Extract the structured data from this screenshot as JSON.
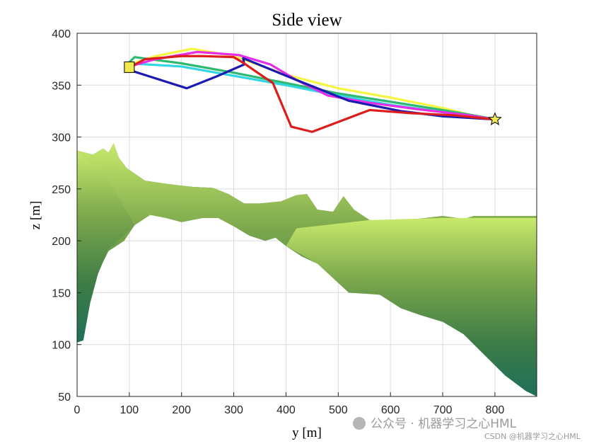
{
  "chart_data": {
    "type": "line",
    "title": "Side view",
    "xlabel": "y [m]",
    "ylabel": "z [m]",
    "xlim": [
      0,
      880
    ],
    "ylim": [
      50,
      400
    ],
    "xticks": [
      0,
      100,
      200,
      300,
      400,
      500,
      600,
      700,
      800
    ],
    "yticks": [
      50,
      100,
      150,
      200,
      250,
      300,
      350,
      400
    ],
    "grid": true,
    "legend": "none",
    "start_marker": {
      "shape": "square",
      "color": "#f2e94e",
      "x": 100,
      "y": 367
    },
    "goal_marker": {
      "shape": "star",
      "color": "#f2e94e",
      "x": 800,
      "y": 317
    },
    "series": [
      {
        "color": "#f5f542",
        "points": [
          [
            100,
            370
          ],
          [
            150,
            378
          ],
          [
            220,
            385
          ],
          [
            300,
            378
          ],
          [
            400,
            360
          ],
          [
            500,
            347
          ],
          [
            600,
            338
          ],
          [
            700,
            328
          ],
          [
            780,
            318
          ],
          [
            800,
            317
          ]
        ]
      },
      {
        "color": "#2eb872",
        "points": [
          [
            100,
            372
          ],
          [
            110,
            377
          ],
          [
            200,
            371
          ],
          [
            300,
            362
          ],
          [
            400,
            352
          ],
          [
            500,
            342
          ],
          [
            600,
            334
          ],
          [
            700,
            326
          ],
          [
            780,
            319
          ],
          [
            800,
            317
          ]
        ]
      },
      {
        "color": "#31d6e3",
        "points": [
          [
            100,
            371
          ],
          [
            200,
            368
          ],
          [
            300,
            359
          ],
          [
            400,
            350
          ],
          [
            500,
            340
          ],
          [
            600,
            331
          ],
          [
            700,
            324
          ],
          [
            780,
            318
          ],
          [
            800,
            317
          ]
        ]
      },
      {
        "color": "#e52ee5",
        "points": [
          [
            100,
            368
          ],
          [
            150,
            375
          ],
          [
            230,
            382
          ],
          [
            310,
            379
          ],
          [
            370,
            370
          ],
          [
            420,
            355
          ],
          [
            480,
            340
          ],
          [
            560,
            333
          ],
          [
            650,
            327
          ],
          [
            750,
            321
          ],
          [
            800,
            317
          ]
        ]
      },
      {
        "color": "#1a1ab3",
        "points": [
          [
            100,
            367
          ],
          [
            110,
            363
          ],
          [
            210,
            347
          ],
          [
            270,
            359
          ],
          [
            320,
            370
          ],
          [
            318,
            376
          ],
          [
            420,
            355
          ],
          [
            520,
            335
          ],
          [
            620,
            325
          ],
          [
            700,
            320
          ],
          [
            800,
            317
          ]
        ]
      },
      {
        "color": "#dd1c1c",
        "points": [
          [
            100,
            367
          ],
          [
            130,
            375
          ],
          [
            200,
            378
          ],
          [
            240,
            378
          ],
          [
            300,
            377
          ],
          [
            320,
            371
          ],
          [
            340,
            364
          ],
          [
            375,
            352
          ],
          [
            410,
            310
          ],
          [
            450,
            305
          ],
          [
            560,
            326
          ],
          [
            640,
            323
          ],
          [
            720,
            321
          ],
          [
            800,
            317
          ]
        ]
      }
    ],
    "terrain": {
      "colormap": [
        "#c8e96c",
        "#7aa64c",
        "#3d7c46",
        "#1f6f5a"
      ],
      "front_profile": [
        [
          0,
          200
        ],
        [
          15,
          175
        ],
        [
          30,
          160
        ],
        [
          60,
          190
        ],
        [
          90,
          200
        ],
        [
          110,
          215
        ],
        [
          140,
          225
        ],
        [
          170,
          222
        ],
        [
          200,
          218
        ],
        [
          240,
          222
        ],
        [
          270,
          222
        ],
        [
          300,
          214
        ],
        [
          330,
          205
        ],
        [
          360,
          200
        ],
        [
          380,
          203
        ],
        [
          400,
          195
        ],
        [
          430,
          185
        ],
        [
          460,
          178
        ],
        [
          500,
          165
        ],
        [
          530,
          160
        ],
        [
          550,
          150
        ],
        [
          580,
          148
        ],
        [
          620,
          135
        ],
        [
          660,
          128
        ],
        [
          700,
          122
        ],
        [
          740,
          110
        ],
        [
          780,
          90
        ],
        [
          820,
          70
        ],
        [
          860,
          55
        ],
        [
          880,
          52
        ]
      ],
      "ridge_profile": [
        [
          0,
          287
        ],
        [
          30,
          283
        ],
        [
          50,
          289
        ],
        [
          60,
          285
        ],
        [
          70,
          294
        ],
        [
          80,
          280
        ],
        [
          95,
          270
        ],
        [
          130,
          258
        ],
        [
          170,
          255
        ],
        [
          220,
          252
        ],
        [
          260,
          251
        ],
        [
          290,
          245
        ],
        [
          320,
          236
        ],
        [
          350,
          236
        ],
        [
          390,
          238
        ],
        [
          420,
          244
        ],
        [
          440,
          245
        ],
        [
          460,
          230
        ],
        [
          490,
          228
        ],
        [
          510,
          243
        ],
        [
          530,
          230
        ],
        [
          560,
          220
        ],
        [
          600,
          219
        ],
        [
          650,
          221
        ],
        [
          700,
          224
        ],
        [
          740,
          221
        ],
        [
          760,
          224
        ],
        [
          880,
          224
        ]
      ],
      "bottom": 50
    }
  },
  "watermark": {
    "channel": "公众号 · 机器学习之心HML",
    "source": "CSDN @机器学习之心HML"
  }
}
